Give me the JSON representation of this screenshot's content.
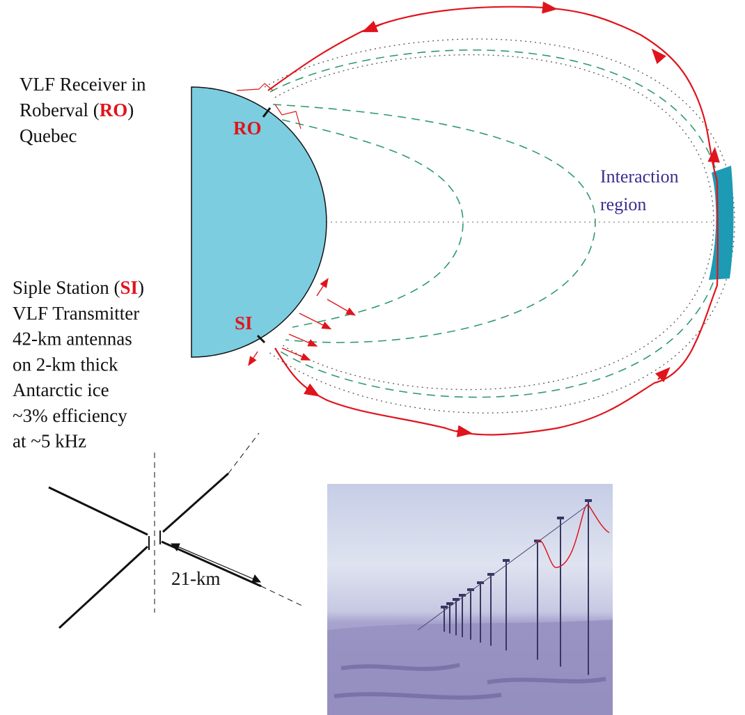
{
  "receiver": {
    "line1": "VLF Receiver in",
    "line2": {
      "before": "Roberval (",
      "code": "RO",
      "after": ")"
    },
    "line3": "Quebec"
  },
  "transmitter": {
    "line1": {
      "before": "Siple Station (",
      "code": "SI",
      "after": ")"
    },
    "lines": [
      "VLF Transmitter",
      "42-km antennas",
      "on 2-km thick",
      "Antarctic ice",
      "~3% efficiency",
      "at ~5 kHz"
    ]
  },
  "earth_labels": {
    "receiver": "RO",
    "transmitter": "SI"
  },
  "interaction": {
    "line1": "Interaction",
    "line2": "region"
  },
  "antenna": {
    "length_label": "21-km"
  }
}
